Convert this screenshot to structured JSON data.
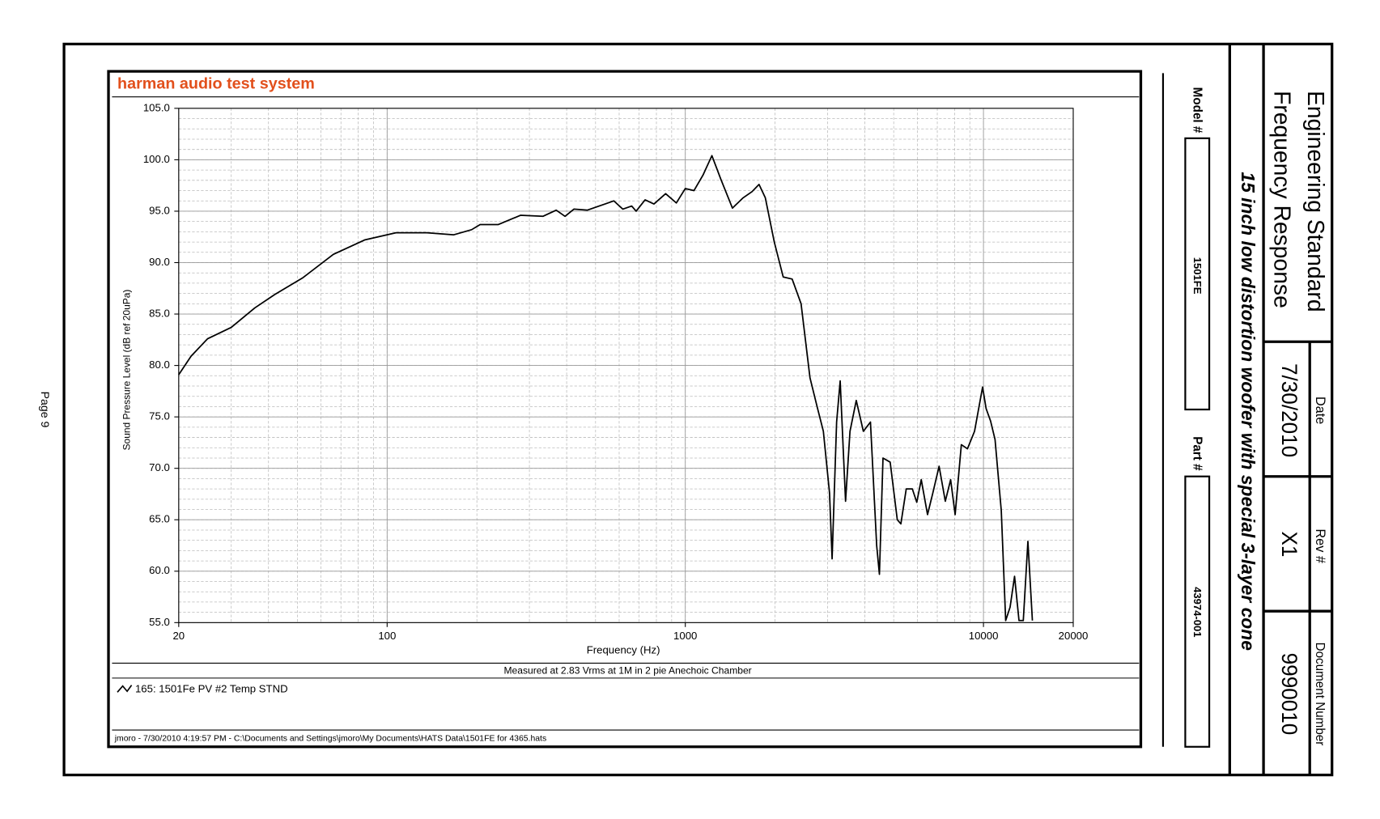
{
  "page_label": "Page 9",
  "fields": {
    "model_label": "Model #",
    "model": "1501FE",
    "part_label": "Part #",
    "part": "43974-001"
  },
  "title_block": {
    "heading": "Engineering Standard",
    "subheading": "Frequency Response",
    "description": "15 inch low distortion woofer with special 3-layer cone",
    "date_label": "Date",
    "date": "7/30/2010",
    "rev_label": "Rev #",
    "rev": "X1",
    "doc_label": "Document Number",
    "doc": "9990010"
  },
  "chart_data": {
    "type": "line",
    "title": "harman audio test system",
    "x_label": "Frequency (Hz)",
    "y_label": "Sound Pressure Level (dB ref 20uPa)",
    "annotation": "Measured at 2.83 Vrms at 1M in 2 pie Anechoic Chamber",
    "footer": "jmoro - 7/30/2010 4:19:57 PM - C:\\Documents and Settings\\jmoro\\My Documents\\HATS Data\\1501FE for 4365.hats",
    "xscale": "log",
    "grid": true,
    "xlim": [
      20,
      20000
    ],
    "xticks": [
      20,
      100,
      1000,
      10000,
      20000
    ],
    "ylim": [
      55,
      105
    ],
    "yticks": [
      {
        "value": 55,
        "label": "55.0"
      },
      {
        "value": 60,
        "label": "60.0"
      },
      {
        "value": 65,
        "label": "65.0"
      },
      {
        "value": 70,
        "label": "70.0"
      },
      {
        "value": 75,
        "label": "75.0"
      },
      {
        "value": 80,
        "label": "80.0"
      },
      {
        "value": 85,
        "label": "85.0"
      },
      {
        "value": 90,
        "label": "90.0"
      },
      {
        "value": 95,
        "label": "95.0"
      },
      {
        "value": 100,
        "label": "100.0"
      },
      {
        "value": 105,
        "label": "105.0"
      }
    ],
    "x": [
      20,
      22,
      25,
      30,
      36,
      42,
      52,
      66,
      84,
      107,
      136,
      167,
      192,
      205,
      236,
      280,
      333,
      369,
      395,
      423,
      469,
      538,
      576,
      617,
      661,
      684,
      733,
      785,
      859,
      933,
      1000,
      1069,
      1146,
      1228,
      1316,
      1439,
      1563,
      1674,
      1767,
      1855,
      1988,
      2130,
      2282,
      2445,
      2619,
      2767,
      2904,
      3046,
      3107,
      3217,
      3307,
      3447,
      3567,
      3744,
      3955,
      4178,
      4383,
      4477,
      4603,
      4865,
      5140,
      5284,
      5508,
      5773,
      5974,
      6185,
      6492,
      6763,
      7098,
      7447,
      7760,
      8035,
      8429,
      8836,
      9333,
      9932,
      10207,
      10563,
      10934,
      11473,
      11870,
      12281,
      12713,
      13157,
      13600,
      14093,
      14590
    ],
    "series": [
      {
        "name": "165:  1501Fe PV #2 Temp STND",
        "color": "#000000",
        "values": [
          79.1,
          80.9,
          82.6,
          83.7,
          85.6,
          86.9,
          88.5,
          90.8,
          92.2,
          92.9,
          92.9,
          92.7,
          93.2,
          93.7,
          93.7,
          94.6,
          94.5,
          95.1,
          94.5,
          95.2,
          95.1,
          95.7,
          96.0,
          95.2,
          95.5,
          95.0,
          96.1,
          95.7,
          96.7,
          95.8,
          97.2,
          97.0,
          98.5,
          100.4,
          98.1,
          95.3,
          96.3,
          96.9,
          97.6,
          96.3,
          92.0,
          88.6,
          88.4,
          86.0,
          78.8,
          76.0,
          73.6,
          67.6,
          61.2,
          74.5,
          78.5,
          66.8,
          73.6,
          76.6,
          73.6,
          74.5,
          62.5,
          59.7,
          71.0,
          70.6,
          65.0,
          64.6,
          68.0,
          68.0,
          66.7,
          68.9,
          65.5,
          67.6,
          70.2,
          66.8,
          68.9,
          65.5,
          72.3,
          71.9,
          73.6,
          77.9,
          75.8,
          74.6,
          72.8,
          65.9,
          55.2,
          56.5,
          59.5,
          55.2,
          55.2,
          62.9,
          55.2
        ]
      }
    ]
  }
}
